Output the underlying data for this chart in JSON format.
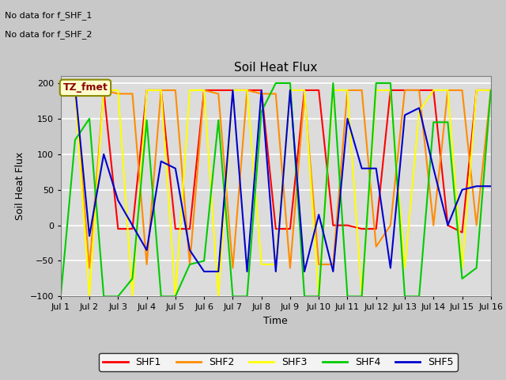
{
  "title": "Soil Heat Flux",
  "ylabel": "Soil Heat Flux",
  "xlabel": "Time",
  "annotation1": "No data for f_SHF_1",
  "annotation2": "No data for f_SHF_2",
  "tz_label": "TZ_fmet",
  "ylim": [
    -100,
    210
  ],
  "yticks": [
    -100,
    -50,
    0,
    50,
    100,
    150,
    200
  ],
  "xtick_labels": [
    "Jul 1",
    "Jul 2",
    "Jul 3",
    "Jul 4",
    "Jul 5",
    "Jul 6",
    "Jul 7",
    "Jul 8",
    "Jul 9",
    "Jul 10",
    "Jul 11",
    "Jul 12",
    "Jul 13",
    "Jul 14",
    "Jul 15",
    "Jul 16"
  ],
  "colors": {
    "SHF1": "#ff0000",
    "SHF2": "#ff8c00",
    "SHF3": "#ffff00",
    "SHF4": "#00cc00",
    "SHF5": "#0000cd"
  },
  "fig_bg": "#c8c8c8",
  "ax_bg": "#dcdcdc",
  "SHF1": [
    190,
    185,
    190,
    190,
    -5,
    -5,
    190,
    190,
    -5,
    -5,
    190,
    190,
    190,
    190,
    190,
    -5,
    -5,
    190,
    190,
    0,
    0,
    -5,
    -5,
    190,
    190,
    190,
    190,
    0,
    -10,
    190,
    190
  ],
  "SHF2": [
    190,
    190,
    -60,
    190,
    185,
    185,
    -55,
    190,
    190,
    -55,
    190,
    185,
    -60,
    190,
    185,
    185,
    -60,
    185,
    -55,
    -55,
    190,
    190,
    -30,
    0,
    190,
    190,
    0,
    190,
    190,
    0,
    190
  ],
  "SHF3": [
    190,
    190,
    -100,
    190,
    190,
    -100,
    190,
    190,
    -100,
    190,
    190,
    -100,
    190,
    190,
    -55,
    -55,
    190,
    190,
    -100,
    190,
    190,
    -100,
    190,
    190,
    -60,
    160,
    190,
    190,
    -60,
    190,
    190
  ],
  "SHF4": [
    -100,
    120,
    150,
    -100,
    -100,
    -75,
    148,
    -100,
    -100,
    -55,
    -50,
    148,
    -100,
    -100,
    160,
    200,
    200,
    -100,
    -100,
    200,
    -100,
    -100,
    200,
    200,
    -100,
    -100,
    145,
    145,
    -75,
    -60,
    190
  ],
  "SHF5": [
    195,
    195,
    -15,
    100,
    35,
    0,
    -35,
    90,
    80,
    -35,
    -65,
    -65,
    190,
    -65,
    190,
    -65,
    190,
    -65,
    15,
    -65,
    150,
    80,
    80,
    -60,
    155,
    165,
    80,
    0,
    50,
    55,
    55
  ],
  "n_points": 31
}
